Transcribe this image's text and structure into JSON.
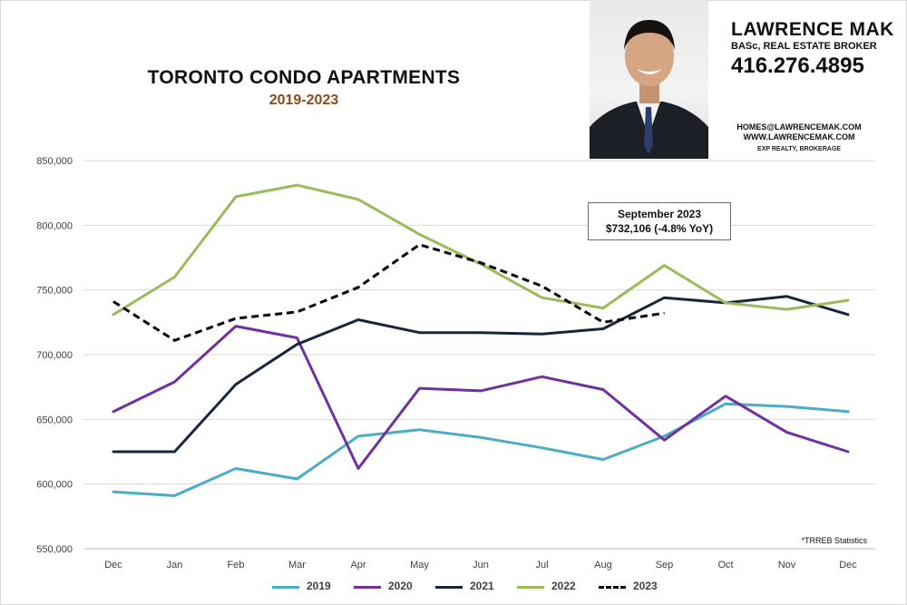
{
  "header": {
    "title": "TORONTO CONDO APARTMENTS",
    "subtitle": "2019-2023"
  },
  "agent": {
    "name": "LAWRENCE MAK",
    "credentials": "BASc, REAL ESTATE BROKER",
    "phone": "416.276.4895",
    "email": "HOMES@LAWRENCEMAK.COM",
    "website": "WWW.LAWRENCEMAK.COM",
    "brokerage": "EXP REALTY, BROKERAGE"
  },
  "annotation": {
    "line1": "September 2023",
    "line2": "$732,106  (-4.8%  YoY)"
  },
  "footnote": "*TRREB Statistics",
  "chart_data": {
    "type": "line",
    "title": "TORONTO CONDO APARTMENTS",
    "subtitle": "2019-2023",
    "categories": [
      "Dec",
      "Jan",
      "Feb",
      "Mar",
      "Apr",
      "May",
      "Jun",
      "Jul",
      "Aug",
      "Sep",
      "Oct",
      "Nov",
      "Dec"
    ],
    "ylim": [
      550000,
      850000
    ],
    "yticks": [
      550000,
      600000,
      650000,
      700000,
      750000,
      800000,
      850000
    ],
    "ytick_labels": [
      "550,000",
      "600,000",
      "650,000",
      "700,000",
      "750,000",
      "800,000",
      "850,000"
    ],
    "grid": true,
    "legend_position": "bottom",
    "series": [
      {
        "name": "2019",
        "color": "#4bacc6",
        "dashed": false,
        "values": [
          594000,
          591000,
          612000,
          604000,
          637000,
          642000,
          636000,
          628000,
          619000,
          637000,
          662000,
          660000,
          656000
        ]
      },
      {
        "name": "2020",
        "color": "#7030a0",
        "dashed": false,
        "values": [
          656000,
          679000,
          722000,
          713000,
          612000,
          674000,
          672000,
          683000,
          673000,
          634000,
          668000,
          640000,
          625000
        ]
      },
      {
        "name": "2021",
        "color": "#17263a",
        "dashed": false,
        "values": [
          625000,
          625000,
          677000,
          708000,
          727000,
          717000,
          717000,
          716000,
          720000,
          744000,
          740000,
          745000,
          731000
        ]
      },
      {
        "name": "2022",
        "color": "#9bbb59",
        "dashed": false,
        "values": [
          731000,
          760000,
          822000,
          831000,
          820000,
          793000,
          770000,
          744000,
          736000,
          769000,
          740000,
          735000,
          742000
        ]
      },
      {
        "name": "2023",
        "color": "#000000",
        "dashed": true,
        "values": [
          741000,
          711000,
          728000,
          733000,
          752000,
          785000,
          771000,
          753000,
          725000,
          732106,
          null,
          null,
          null
        ]
      }
    ]
  }
}
